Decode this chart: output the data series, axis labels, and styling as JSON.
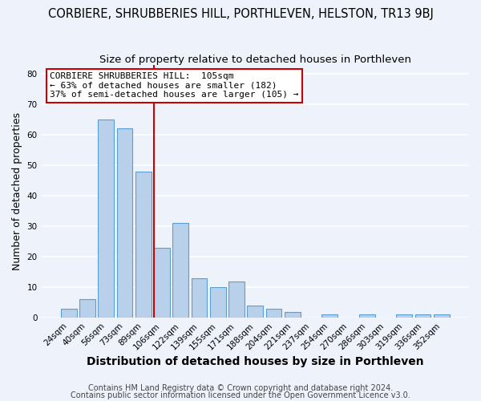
{
  "title": "CORBIERE, SHRUBBERIES HILL, PORTHLEVEN, HELSTON, TR13 9BJ",
  "subtitle": "Size of property relative to detached houses in Porthleven",
  "xlabel": "Distribution of detached houses by size in Porthleven",
  "ylabel": "Number of detached properties",
  "bar_color": "#b8d0ea",
  "bar_edge_color": "#5a9fd4",
  "categories": [
    "24sqm",
    "40sqm",
    "56sqm",
    "73sqm",
    "89sqm",
    "106sqm",
    "122sqm",
    "139sqm",
    "155sqm",
    "171sqm",
    "188sqm",
    "204sqm",
    "221sqm",
    "237sqm",
    "254sqm",
    "270sqm",
    "286sqm",
    "303sqm",
    "319sqm",
    "336sqm",
    "352sqm"
  ],
  "values": [
    3,
    6,
    65,
    62,
    48,
    23,
    31,
    13,
    10,
    12,
    4,
    3,
    2,
    0,
    1,
    0,
    1,
    0,
    1,
    1,
    1
  ],
  "marker_index": 5,
  "marker_color": "#cc0000",
  "annotation_title": "CORBIERE SHRUBBERIES HILL:  105sqm",
  "annotation_line1": "← 63% of detached houses are smaller (182)",
  "annotation_line2": "37% of semi-detached houses are larger (105) →",
  "ylim": [
    0,
    83
  ],
  "yticks": [
    0,
    10,
    20,
    30,
    40,
    50,
    60,
    70,
    80
  ],
  "footnote1": "Contains HM Land Registry data © Crown copyright and database right 2024.",
  "footnote2": "Contains public sector information licensed under the Open Government Licence v3.0.",
  "background_color": "#eef2fb",
  "grid_color": "#ffffff",
  "title_fontsize": 10.5,
  "subtitle_fontsize": 9.5,
  "xlabel_fontsize": 10,
  "ylabel_fontsize": 9,
  "tick_fontsize": 7.5,
  "annotation_fontsize": 8,
  "footnote_fontsize": 7
}
